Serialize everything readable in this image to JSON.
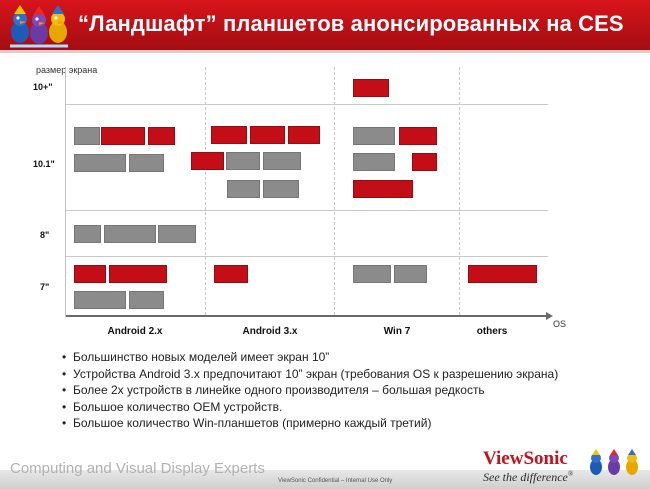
{
  "header": {
    "title": "“Ландшафт” планшетов анонсированных на CES",
    "logo_icon": "viewsonic-birds-icon"
  },
  "chart_data": {
    "type": "block-matrix",
    "y_axis_label": "размер экрана",
    "x_axis_label": "OS",
    "rows": [
      "10+\"",
      "10.1\"",
      "8\"",
      "7\""
    ],
    "columns": [
      "Android 2.x",
      "Android 3.x",
      "Win 7",
      "others"
    ],
    "legend_colors": {
      "red": "#c30d17",
      "gray": "#8b8b8b"
    },
    "cells": [
      {
        "row": "10+\"",
        "column": "Win 7",
        "red": 1,
        "gray": 0
      },
      {
        "row": "10.1\"",
        "column": "Android 2.x",
        "red": 2,
        "gray": 3
      },
      {
        "row": "10.1\"",
        "column": "Android 3.x",
        "red": 4,
        "gray": 4
      },
      {
        "row": "10.1\"",
        "column": "Win 7",
        "red": 3,
        "gray": 2
      },
      {
        "row": "8\"",
        "column": "Android 2.x",
        "red": 0,
        "gray": 3
      },
      {
        "row": "7\"",
        "column": "Android 2.x",
        "red": 2,
        "gray": 2
      },
      {
        "row": "7\"",
        "column": "Android 3.x",
        "red": 1,
        "gray": 0
      },
      {
        "row": "7\"",
        "column": "Win 7",
        "red": 0,
        "gray": 2
      },
      {
        "row": "7\"",
        "column": "others",
        "red": 1,
        "gray": 0
      }
    ]
  },
  "bullets": [
    "Большинство новых моделей имеет экран 10”",
    "Устройства Android 3.x предпочитают 10” экран (требования OS к разрешению экрана)",
    "Более 2х устройств в линейке одного производителя – большая редкость",
    "Большое количество OEM устройств.",
    "Большое количество Win-планшетов (примерно каждый третий)"
  ],
  "footer": {
    "tagline": "Computing and Visual Display Experts",
    "confidential": "ViewSonic Confidential – Internal Use Only",
    "brand": "ViewSonic",
    "slogan": "See the difference",
    "slogan_mark": "®"
  }
}
